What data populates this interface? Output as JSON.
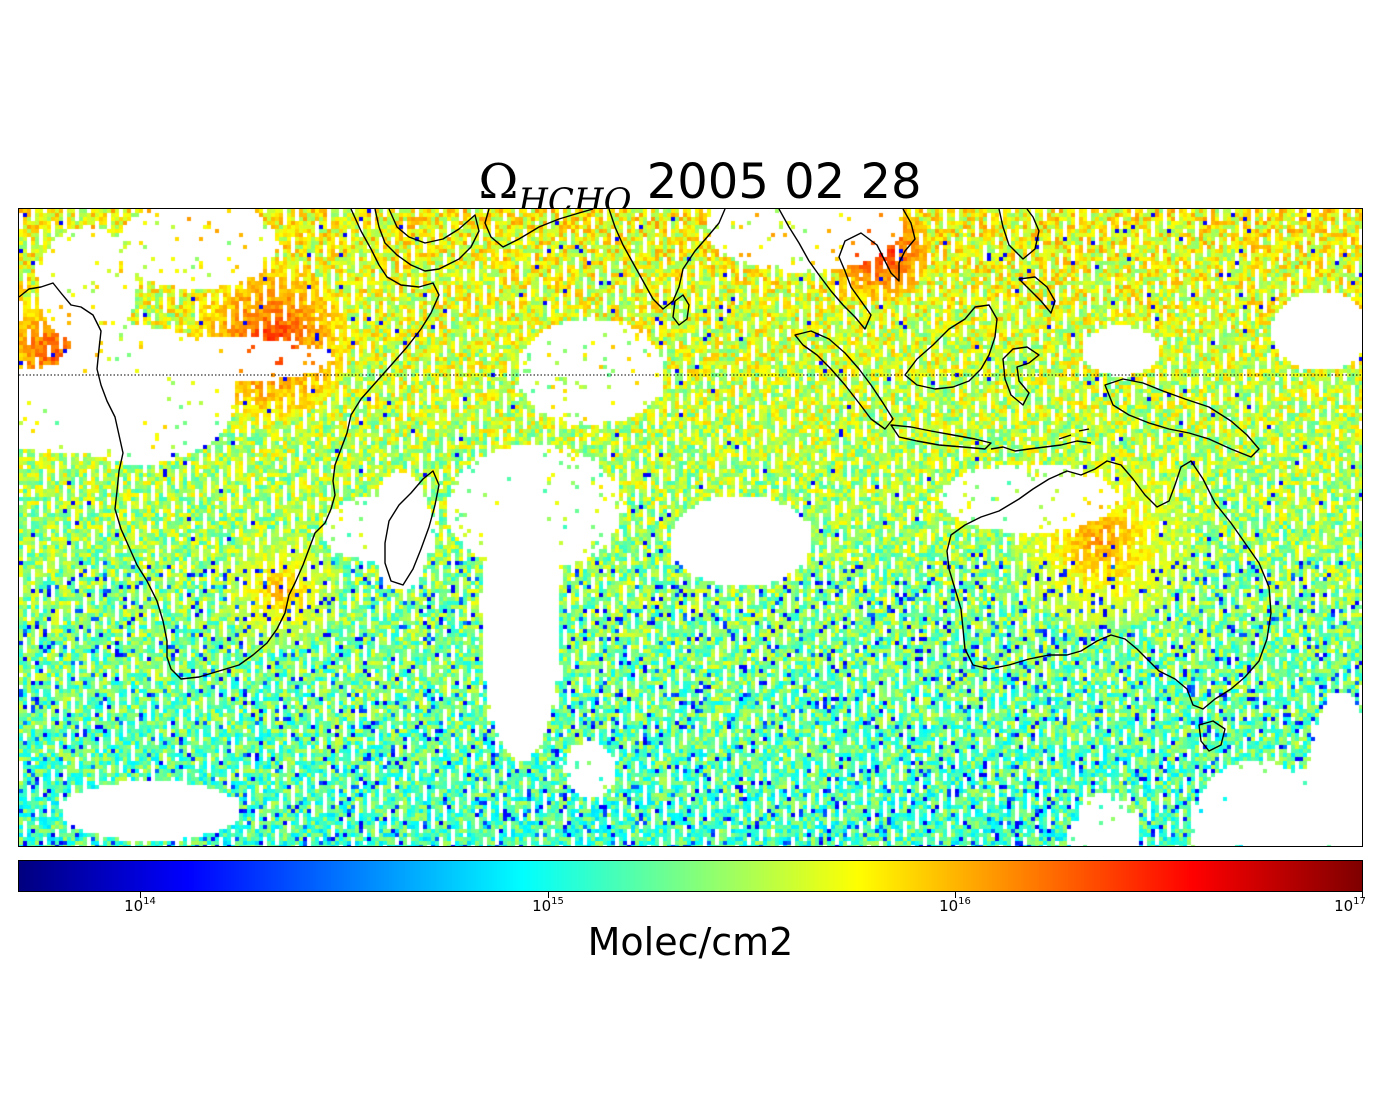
{
  "figure": {
    "title_symbol": "Ω",
    "title_subscript": "HCHO",
    "title_date": "2005 02 28"
  },
  "map": {
    "projection": "equirectangular",
    "field": "HCHO column",
    "equator_line": "dotted",
    "coastlines": "black"
  },
  "colorbar": {
    "label": "Molec/cm2",
    "scale": "log",
    "colormap": "jet",
    "range": [
      "10^13.7",
      "10^17"
    ],
    "ticks": [
      {
        "base": "10",
        "exp": "14"
      },
      {
        "base": "10",
        "exp": "15"
      },
      {
        "base": "10",
        "exp": "16"
      },
      {
        "base": "10",
        "exp": "17"
      }
    ]
  },
  "colors": {
    "low": "#00007f",
    "mid": "#7fff7f",
    "high": "#7f0000",
    "coast": "#000000"
  }
}
